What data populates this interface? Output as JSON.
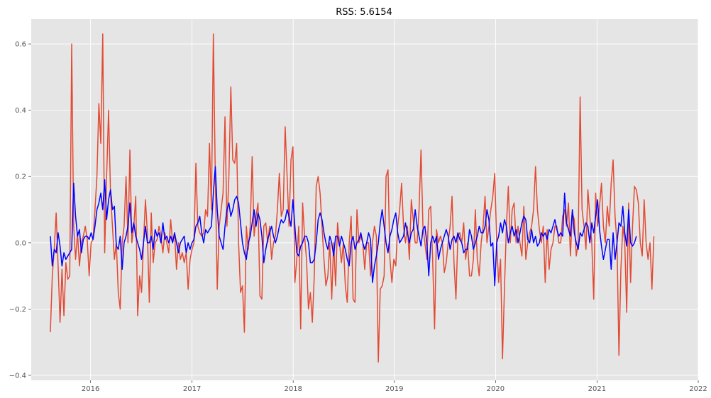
{
  "chart_data": {
    "type": "line",
    "title": "RSS: 5.6154",
    "xlabel": "",
    "ylabel": "",
    "x_type": "date",
    "x_start": "2015-08-09",
    "x_step_days": 7,
    "xlim": [
      "2015-06-01",
      "2022-01-01"
    ],
    "ylim": [
      -0.415,
      0.675
    ],
    "x_ticks": [
      "2016",
      "2017",
      "2018",
      "2019",
      "2020",
      "2021",
      "2022"
    ],
    "x_tick_dates": [
      "2016-01-01",
      "2017-01-01",
      "2018-01-01",
      "2019-01-01",
      "2020-01-01",
      "2021-01-01",
      "2022-01-01"
    ],
    "y_ticks": [
      -0.4,
      -0.2,
      0.0,
      0.2,
      0.4,
      0.6
    ],
    "y_tick_labels": [
      "−0.4",
      "−0.2",
      "0.0",
      "0.2",
      "0.4",
      "0.6"
    ],
    "grid": true,
    "background": "#e5e5e5",
    "series": [
      {
        "color": "#e24a33",
        "values": [
          -0.27,
          -0.1,
          -0.02,
          0.09,
          -0.07,
          -0.24,
          -0.08,
          -0.22,
          -0.06,
          -0.11,
          -0.1,
          0.6,
          0.05,
          -0.05,
          0.03,
          -0.07,
          0.0,
          0.02,
          0.05,
          0.01,
          -0.1,
          0.0,
          0.01,
          0.1,
          0.2,
          0.42,
          0.3,
          0.63,
          -0.03,
          0.2,
          0.4,
          0.15,
          0.05,
          -0.05,
          0.0,
          -0.15,
          -0.2,
          0.0,
          0.05,
          0.2,
          0.0,
          0.28,
          0.0,
          0.05,
          0.14,
          -0.22,
          -0.1,
          -0.15,
          0.0,
          0.13,
          0.03,
          -0.18,
          0.09,
          -0.06,
          0.0,
          0.01,
          0.05,
          0.02,
          -0.03,
          0.03,
          0.0,
          -0.03,
          0.07,
          0.0,
          0.03,
          -0.08,
          0.0,
          -0.05,
          -0.03,
          -0.06,
          -0.03,
          -0.14,
          -0.05,
          -0.02,
          0.0,
          0.24,
          0.05,
          0.03,
          0.02,
          0.03,
          0.1,
          0.08,
          0.3,
          0.1,
          0.63,
          0.2,
          -0.14,
          0.05,
          0.1,
          0.15,
          0.38,
          0.05,
          0.2,
          0.47,
          0.25,
          0.24,
          0.3,
          0.0,
          -0.15,
          -0.13,
          -0.27,
          0.05,
          -0.02,
          0.05,
          0.26,
          0.02,
          0.08,
          0.12,
          -0.16,
          -0.17,
          0.05,
          0.06,
          0.0,
          0.05,
          -0.05,
          0.0,
          0.02,
          0.1,
          0.21,
          0.08,
          0.1,
          0.35,
          0.2,
          0.05,
          0.25,
          0.29,
          -0.12,
          -0.05,
          0.05,
          -0.26,
          0.12,
          0.02,
          -0.05,
          -0.2,
          -0.15,
          -0.24,
          -0.1,
          0.17,
          0.2,
          0.15,
          0.05,
          -0.05,
          -0.13,
          -0.1,
          0.0,
          -0.17,
          0.0,
          -0.13,
          0.06,
          0.0,
          -0.06,
          0.0,
          -0.13,
          -0.18,
          0.0,
          0.08,
          -0.17,
          -0.18,
          0.1,
          0.0,
          0.02,
          0.0,
          -0.08,
          0.0,
          0.0,
          -0.1,
          0.0,
          0.05,
          0.02,
          -0.36,
          -0.14,
          -0.13,
          -0.1,
          0.2,
          0.22,
          -0.05,
          -0.12,
          -0.05,
          -0.07,
          0.05,
          0.1,
          0.18,
          0.05,
          0.0,
          0.05,
          -0.05,
          0.13,
          0.07,
          0.0,
          0.0,
          0.1,
          0.28,
          0.05,
          0.0,
          -0.05,
          0.1,
          0.11,
          -0.05,
          -0.26,
          0.04,
          0.0,
          0.02,
          0.0,
          -0.09,
          -0.06,
          0.0,
          0.05,
          0.14,
          -0.06,
          -0.17,
          0.02,
          0.03,
          0.0,
          0.06,
          -0.05,
          0.0,
          -0.1,
          -0.1,
          -0.05,
          0.1,
          -0.05,
          -0.1,
          0.0,
          0.05,
          0.14,
          0.0,
          0.05,
          0.1,
          0.14,
          0.21,
          0.0,
          -0.12,
          -0.05,
          -0.35,
          -0.14,
          0.05,
          0.17,
          0.0,
          0.1,
          0.12,
          0.0,
          0.05,
          0.0,
          -0.04,
          0.11,
          -0.05,
          0.0,
          0.03,
          0.05,
          0.1,
          0.23,
          0.1,
          0.04,
          0.0,
          0.05,
          -0.12,
          0.04,
          -0.08,
          -0.02,
          0.0,
          0.05,
          0.05,
          0.0,
          0.0,
          0.08,
          0.1,
          0.05,
          0.12,
          -0.04,
          0.09,
          0.07,
          -0.04,
          0.0,
          0.44,
          0.1,
          0.05,
          -0.02,
          0.16,
          0.08,
          0.0,
          -0.17,
          0.15,
          0.05,
          0.11,
          0.18,
          0.05,
          0.0,
          0.11,
          0.05,
          0.18,
          0.25,
          0.08,
          0.0,
          -0.34,
          -0.08,
          0.05,
          0.0,
          -0.21,
          0.12,
          -0.12,
          0.05,
          0.17,
          0.16,
          0.12,
          0.0,
          -0.04,
          0.13,
          0.0,
          -0.05,
          0.0,
          -0.14,
          0.02
        ]
      },
      {
        "color": "#0000ff",
        "values": [
          0.02,
          -0.07,
          -0.02,
          -0.03,
          0.03,
          -0.01,
          -0.07,
          -0.03,
          -0.05,
          -0.04,
          -0.03,
          -0.02,
          0.18,
          0.08,
          0.02,
          0.04,
          -0.03,
          0.01,
          0.02,
          0.02,
          0.01,
          0.03,
          0.01,
          0.05,
          0.1,
          0.12,
          0.15,
          0.1,
          0.19,
          0.07,
          0.13,
          0.16,
          0.1,
          0.11,
          -0.01,
          -0.02,
          0.02,
          -0.08,
          0.0,
          0.02,
          0.05,
          0.12,
          0.03,
          0.06,
          0.02,
          0.0,
          -0.02,
          -0.05,
          0.0,
          0.05,
          0.0,
          0.0,
          0.02,
          -0.02,
          0.04,
          0.02,
          0.03,
          0.0,
          0.06,
          0.01,
          0.02,
          0.0,
          0.02,
          0.0,
          0.03,
          0.0,
          -0.03,
          0.0,
          0.01,
          0.02,
          -0.03,
          0.0,
          -0.02,
          0.0,
          0.01,
          0.05,
          0.06,
          0.08,
          0.03,
          0.0,
          0.04,
          0.03,
          0.04,
          0.05,
          0.15,
          0.23,
          0.1,
          0.02,
          0.0,
          -0.02,
          0.05,
          0.1,
          0.12,
          0.08,
          0.1,
          0.13,
          0.14,
          0.12,
          0.06,
          0.0,
          -0.03,
          -0.05,
          0.0,
          0.02,
          0.06,
          0.1,
          0.05,
          0.09,
          0.07,
          0.02,
          -0.06,
          -0.02,
          0.01,
          0.03,
          0.05,
          0.02,
          0.0,
          0.02,
          0.05,
          0.07,
          0.06,
          0.07,
          0.1,
          0.08,
          0.05,
          0.13,
          0.05,
          -0.03,
          -0.04,
          -0.01,
          0.0,
          0.02,
          0.02,
          0.0,
          -0.06,
          -0.06,
          -0.05,
          0.0,
          0.07,
          0.09,
          0.07,
          0.03,
          0.0,
          -0.02,
          0.02,
          0.0,
          -0.04,
          0.02,
          0.02,
          -0.01,
          0.02,
          0.0,
          -0.02,
          -0.05,
          -0.07,
          0.0,
          0.02,
          -0.02,
          0.0,
          0.01,
          0.03,
          0.0,
          -0.02,
          0.0,
          0.03,
          0.01,
          -0.12,
          -0.07,
          -0.04,
          0.0,
          0.06,
          0.1,
          0.05,
          0.0,
          -0.03,
          0.02,
          0.04,
          0.07,
          0.09,
          0.03,
          0.0,
          0.01,
          0.02,
          0.06,
          0.03,
          0.0,
          0.03,
          0.04,
          0.1,
          0.05,
          0.02,
          -0.01,
          0.04,
          0.05,
          0.0,
          -0.1,
          0.0,
          0.02,
          0.0,
          0.02,
          -0.05,
          -0.02,
          0.0,
          0.02,
          0.04,
          0.02,
          -0.02,
          0.01,
          0.02,
          0.0,
          0.03,
          0.01,
          0.0,
          -0.03,
          -0.02,
          -0.02,
          0.04,
          0.02,
          -0.02,
          0.0,
          0.02,
          0.05,
          0.03,
          0.03,
          0.05,
          0.1,
          0.07,
          -0.01,
          0.0,
          -0.13,
          0.0,
          0.02,
          0.06,
          0.03,
          0.07,
          0.05,
          0.0,
          0.03,
          0.05,
          0.02,
          0.04,
          0.0,
          0.03,
          0.06,
          0.08,
          0.07,
          0.01,
          0.0,
          0.04,
          0.0,
          0.02,
          -0.01,
          0.0,
          0.03,
          0.02,
          0.03,
          0.01,
          0.04,
          0.03,
          0.05,
          0.07,
          0.04,
          0.02,
          0.03,
          0.02,
          0.15,
          0.06,
          0.04,
          0.02,
          0.1,
          0.03,
          0.0,
          -0.02,
          0.03,
          0.02,
          0.04,
          0.06,
          0.05,
          0.0,
          0.06,
          0.03,
          0.08,
          0.13,
          0.04,
          -0.01,
          -0.05,
          -0.02,
          0.01,
          0.01,
          -0.08,
          0.03,
          -0.05,
          0.0,
          0.06,
          0.05,
          0.11,
          0.03,
          -0.01,
          0.1,
          0.0,
          -0.01,
          0.0,
          0.02
        ]
      }
    ]
  }
}
